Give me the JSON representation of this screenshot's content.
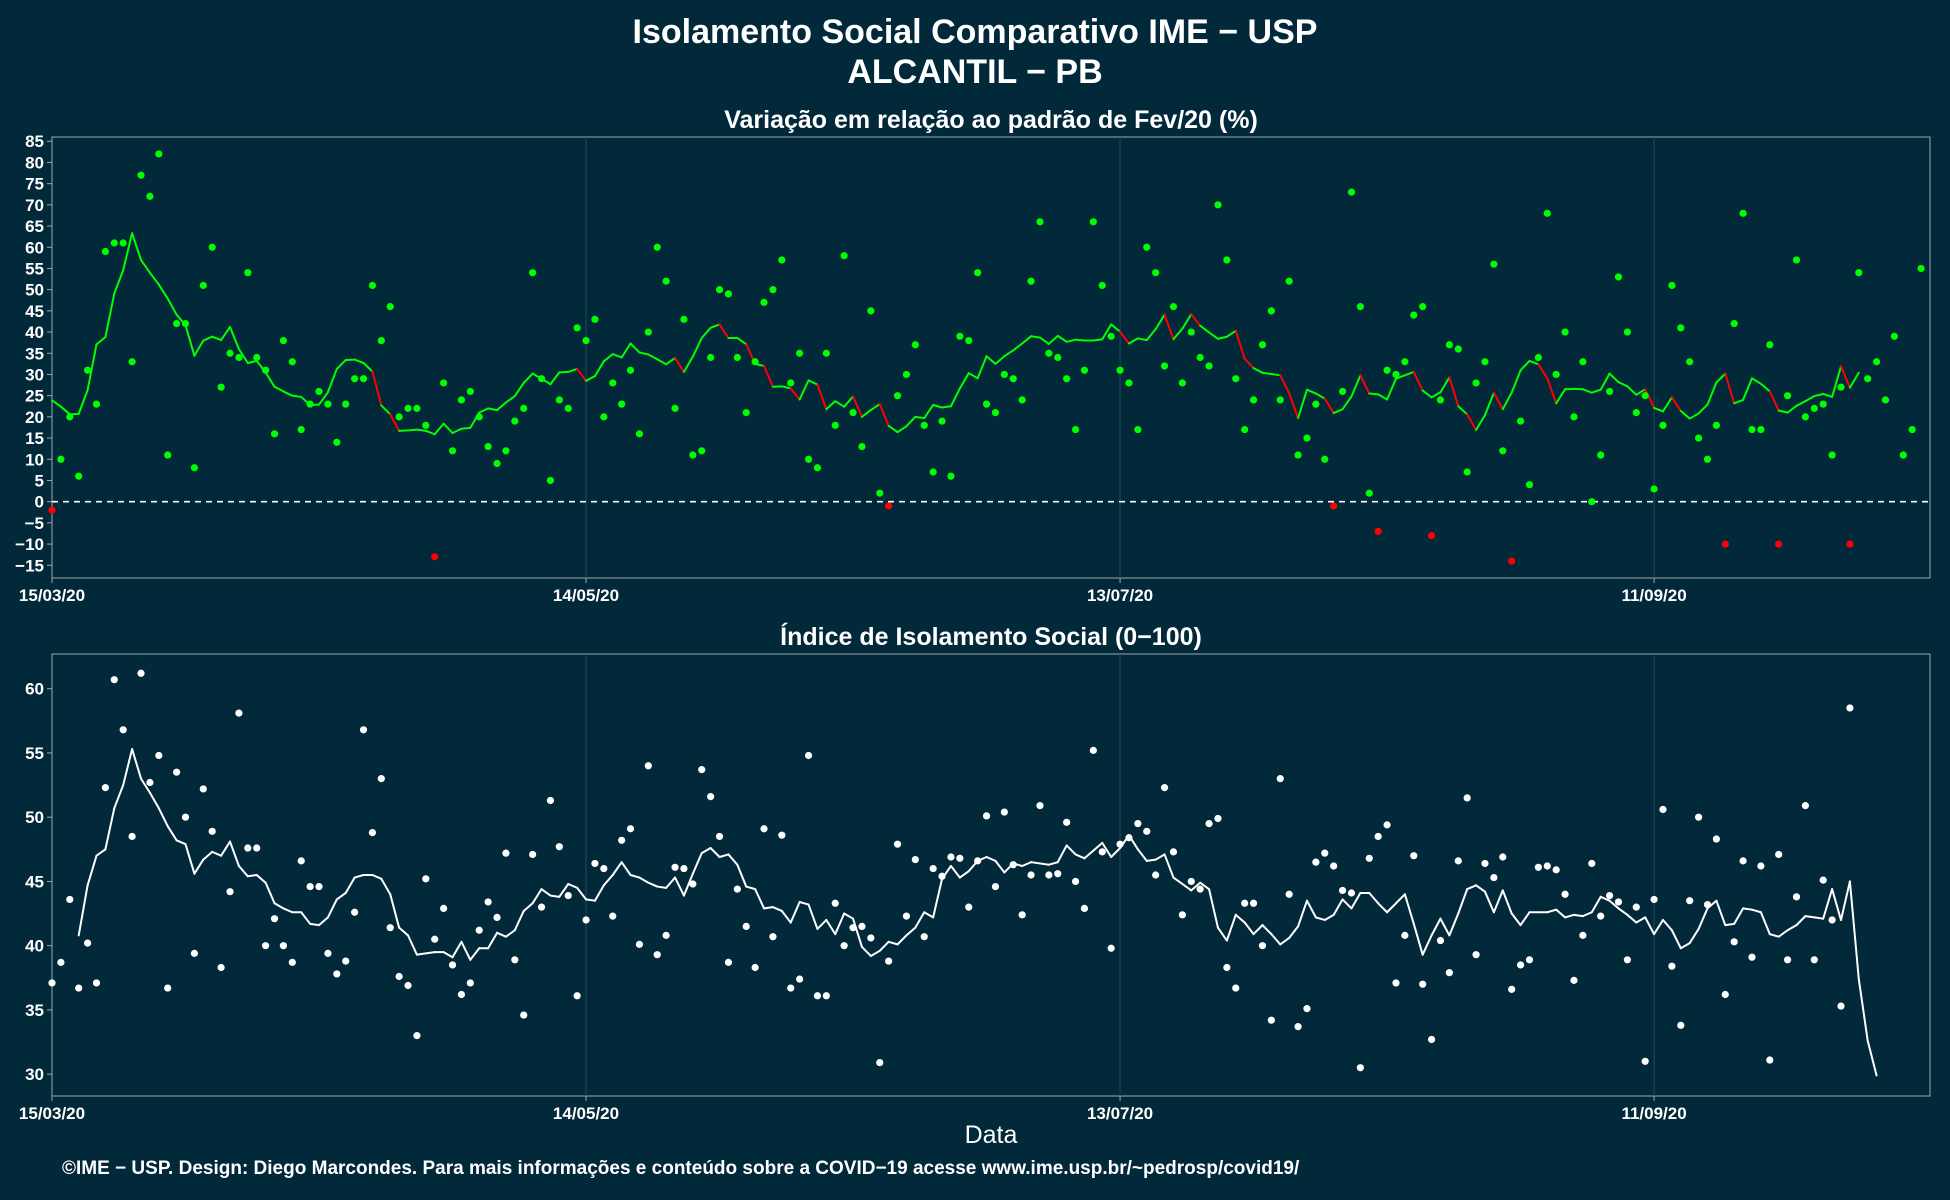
{
  "header": {
    "title": "Isolamento Social Comparativo IME − USP",
    "subtitle": "ALCANTIL − PB"
  },
  "footer": {
    "credit": "©IME − USP. Design: Diego Marcondes. Para mais informações e conteúdo sobre a COVID−19 acesse www.ime.usp.br/~pedrosp/covid19/"
  },
  "colors": {
    "background": "#02293a",
    "positive": "#00ff00",
    "negative": "#ff0000",
    "index": "#ffffff",
    "grid": "#1f4a56",
    "axis": "#9aa8ad"
  },
  "chart_data": [
    {
      "type": "scatter",
      "title": "Variação em relação ao padrão de Fev/20 (%)",
      "xlabel": "",
      "ylabel": "",
      "x_start": "15/03/20",
      "x_end": "02/10/20",
      "xlim_days": [
        0,
        211
      ],
      "ylim": [
        -18,
        86
      ],
      "yticks": [
        -15,
        -10,
        -5,
        0,
        5,
        10,
        15,
        20,
        25,
        30,
        35,
        40,
        45,
        50,
        55,
        60,
        65,
        70,
        75,
        80,
        85
      ],
      "xticks": [
        {
          "day": 0,
          "label": "15/03/20"
        },
        {
          "day": 60,
          "label": "14/05/20"
        },
        {
          "day": 120,
          "label": "13/07/20"
        },
        {
          "day": 180,
          "label": "11/09/20"
        }
      ],
      "reference_line": 0,
      "grid": true,
      "series": [
        {
          "kind": "points",
          "values": [
            -2,
            10,
            20,
            6,
            31,
            23,
            59,
            61,
            61,
            33,
            77,
            72,
            82,
            11,
            42,
            42,
            8,
            51,
            60,
            27,
            35,
            34,
            54,
            34,
            31,
            16,
            38,
            33,
            17,
            23,
            26,
            23,
            14,
            23,
            29,
            29,
            51,
            38,
            46,
            20,
            22,
            22,
            18,
            -13,
            28,
            12,
            24,
            26,
            20,
            13,
            9,
            12,
            19,
            22,
            54,
            29,
            5,
            24,
            22,
            41,
            38,
            43,
            20,
            28,
            23,
            31,
            16,
            40,
            60,
            52,
            22,
            43,
            11,
            12,
            34,
            50,
            49,
            34,
            21,
            33,
            47,
            50,
            57,
            28,
            35,
            10,
            8,
            35,
            18,
            58,
            21,
            13,
            45,
            2,
            -1,
            25,
            30,
            37,
            18,
            7,
            19,
            6,
            39,
            38,
            54,
            23,
            21,
            30,
            29,
            24,
            52,
            66,
            35,
            34,
            29,
            17,
            31,
            66,
            51,
            39,
            31,
            28,
            17,
            60,
            54,
            32,
            46,
            28,
            40,
            34,
            32,
            70,
            57,
            29,
            17,
            24,
            37,
            45,
            24,
            52,
            11,
            15,
            23,
            10,
            -1,
            26,
            73,
            46,
            2,
            -7,
            31,
            30,
            33,
            44,
            46,
            -8,
            24,
            37,
            36,
            7,
            28,
            33,
            56,
            12,
            -14,
            19,
            4,
            34,
            68,
            30,
            40,
            20,
            33,
            0,
            11,
            26,
            53,
            40,
            21,
            25,
            3,
            18,
            51,
            41,
            33,
            15,
            10,
            18,
            -10,
            42,
            68,
            17,
            17,
            37,
            -10,
            25,
            57,
            20,
            22,
            23,
            11,
            27,
            -10,
            54,
            29,
            33,
            24,
            39,
            11,
            17,
            55
          ]
        },
        {
          "kind": "moving_average",
          "start_day": 0,
          "values": [
            23.9,
            22.4,
            20.6,
            20.7,
            26.3,
            37.1,
            38.8,
            49.1,
            54.6,
            63.3,
            57.0,
            54.0,
            51.2,
            47.9,
            44.1,
            41.6,
            34.4,
            38.0,
            38.9,
            38.1,
            41.2,
            36.0,
            32.7,
            33.2,
            30.5,
            27.1,
            26.0,
            25.0,
            24.7,
            22.8,
            22.9,
            25.8,
            31.3,
            33.4,
            33.5,
            32.7,
            30.7,
            22.7,
            20.6,
            16.7,
            16.8,
            17.0,
            16.7,
            15.9,
            18.4,
            16.2,
            17.2,
            17.4,
            21.0,
            22.0,
            21.6,
            23.4,
            24.9,
            28.0,
            30.2,
            29.0,
            27.7,
            30.5,
            30.6,
            31.3,
            28.5,
            29.6,
            33.1,
            34.8,
            34.0,
            37.3,
            35.2,
            34.7,
            33.6,
            32.4,
            33.9,
            30.6,
            34.2,
            38.6,
            41.0,
            41.8,
            38.6,
            38.6,
            37.1,
            32.5,
            32.0,
            27.1,
            27.2,
            26.7,
            24.1,
            28.6,
            27.6,
            21.8,
            23.7,
            22.4,
            24.8,
            20.0,
            21.6,
            23.0,
            17.9,
            16.4,
            17.8,
            20.0,
            19.7,
            22.8,
            22.2,
            22.5,
            26.7,
            30.3,
            29.1,
            34.3,
            32.5,
            34.3,
            35.7,
            37.3,
            39.0,
            38.7,
            37.2,
            39.1,
            37.7,
            38.2,
            38.0,
            38.0,
            38.3,
            41.8,
            40.1,
            37.3,
            38.5,
            38.1,
            40.7,
            44.1,
            38.3,
            40.8,
            44.2,
            41.5,
            39.9,
            38.4,
            38.9,
            40.3,
            33.7,
            31.5,
            30.4,
            30.1,
            29.8,
            25.6,
            19.7,
            26.4,
            25.5,
            24.3,
            20.9,
            21.8,
            24.8,
            29.8,
            25.5,
            25.3,
            24.1,
            29.0,
            29.8,
            30.6,
            26.2,
            24.6,
            25.8,
            29.3,
            22.5,
            20.6,
            16.9,
            20.4,
            25.7,
            21.8,
            25.7,
            31.0,
            33.2,
            32.4,
            29.1,
            23.2,
            26.5,
            26.6,
            26.5,
            25.7,
            26.4,
            30.2,
            28.2,
            27.2,
            25.2,
            26.5,
            22.1,
            21.3,
            24.6,
            21.4,
            19.6,
            20.8,
            22.9,
            28.1,
            30.2,
            23.2,
            24.0,
            29.1,
            27.8,
            26.0,
            21.5,
            21.0,
            22.6,
            23.7,
            24.9,
            25.4,
            24.7,
            31.9,
            26.9,
            30.4
          ]
        }
      ]
    },
    {
      "type": "scatter",
      "title": "Índice de Isolamento Social (0−100)",
      "xlabel": "Data",
      "ylabel": "",
      "x_start": "15/03/20",
      "x_end": "02/10/20",
      "xlim_days": [
        0,
        211
      ],
      "ylim": [
        28.3,
        62.7
      ],
      "yticks": [
        30,
        35,
        40,
        45,
        50,
        55,
        60
      ],
      "xticks": [
        {
          "day": 0,
          "label": "15/03/20"
        },
        {
          "day": 60,
          "label": "14/05/20"
        },
        {
          "day": 120,
          "label": "13/07/20"
        },
        {
          "day": 180,
          "label": "11/09/20"
        }
      ],
      "grid": true,
      "series": [
        {
          "kind": "points",
          "values": [
            37.1,
            38.7,
            43.6,
            36.7,
            40.2,
            37.1,
            52.3,
            60.7,
            56.8,
            48.5,
            61.2,
            52.7,
            54.8,
            36.7,
            53.5,
            50.0,
            39.4,
            52.2,
            48.9,
            38.3,
            44.2,
            58.1,
            47.6,
            47.6,
            40.0,
            42.1,
            40.0,
            38.7,
            46.6,
            44.6,
            44.6,
            39.4,
            37.8,
            38.8,
            42.6,
            56.8,
            48.8,
            53.0,
            41.4,
            37.6,
            36.9,
            33.0,
            45.2,
            40.5,
            42.9,
            38.5,
            36.2,
            37.1,
            41.2,
            43.4,
            42.2,
            47.2,
            38.9,
            34.6,
            47.1,
            43.0,
            51.3,
            47.7,
            43.9,
            36.1,
            42.0,
            46.4,
            46.0,
            42.3,
            48.2,
            49.1,
            40.1,
            54.0,
            39.3,
            40.8,
            46.1,
            46.0,
            44.8,
            53.7,
            51.6,
            48.5,
            38.7,
            44.4,
            41.5,
            38.3,
            49.1,
            40.7,
            48.6,
            36.7,
            37.4,
            54.8,
            36.1,
            36.1,
            43.3,
            40.0,
            41.4,
            41.5,
            40.6,
            30.9,
            38.8,
            47.9,
            42.3,
            46.7,
            40.7,
            46.0,
            45.4,
            46.9,
            46.8,
            43.0,
            46.6,
            50.1,
            44.6,
            50.4,
            46.3,
            42.4,
            45.5,
            50.9,
            45.5,
            45.6,
            49.6,
            45.0,
            42.9,
            55.2,
            47.3,
            39.8,
            47.9,
            48.4,
            49.5,
            48.9,
            45.5,
            52.3,
            47.3,
            42.4,
            45.0,
            44.4,
            49.5,
            49.9,
            38.3,
            36.7,
            43.3,
            43.3,
            40.0,
            34.2,
            53.0,
            44.0,
            33.7,
            35.1,
            46.5,
            47.2,
            46.2,
            44.3,
            44.1,
            30.5,
            46.8,
            48.5,
            49.4,
            37.1,
            40.8,
            47.0,
            37.0,
            32.7,
            40.4,
            37.9,
            46.6,
            51.5,
            39.3,
            46.4,
            45.3,
            46.9,
            36.6,
            38.5,
            38.9,
            46.1,
            46.2,
            45.9,
            44.0,
            37.3,
            40.8,
            46.4,
            42.3,
            43.9,
            43.4,
            38.9,
            43.0,
            31.0,
            43.6,
            50.6,
            38.4,
            33.8,
            43.5,
            50.0,
            43.2,
            48.3,
            36.2,
            40.3,
            46.6,
            39.1,
            46.2,
            31.1,
            47.1,
            38.9,
            43.8,
            50.9,
            38.9,
            45.1,
            42.0,
            35.3,
            58.5
          ]
        },
        {
          "kind": "moving_average",
          "start_day": 3,
          "values": [
            40.8,
            44.7,
            47.0,
            47.5,
            50.7,
            52.5,
            55.3,
            53.0,
            51.9,
            50.7,
            49.3,
            48.2,
            47.9,
            45.6,
            46.7,
            47.3,
            47.0,
            48.1,
            46.2,
            45.4,
            45.5,
            44.9,
            43.3,
            42.9,
            42.6,
            42.6,
            41.7,
            41.6,
            42.2,
            43.6,
            44.1,
            45.3,
            45.5,
            45.5,
            45.2,
            44.0,
            41.4,
            40.8,
            39.3,
            39.4,
            39.5,
            39.5,
            39.1,
            40.3,
            38.9,
            39.8,
            39.8,
            41.0,
            40.7,
            41.2,
            42.7,
            43.3,
            44.4,
            43.9,
            43.8,
            44.8,
            44.5,
            43.6,
            43.5,
            44.7,
            45.5,
            46.5,
            45.5,
            45.3,
            44.9,
            44.6,
            44.5,
            45.3,
            43.9,
            45.6,
            47.2,
            47.6,
            46.9,
            47.1,
            46.3,
            44.6,
            44.4,
            42.9,
            43.0,
            42.7,
            41.8,
            43.4,
            43.2,
            41.3,
            42.0,
            40.9,
            42.5,
            42.1,
            39.9,
            39.2,
            39.6,
            40.3,
            40.1,
            40.8,
            41.4,
            42.6,
            42.2,
            45.2,
            46.2,
            45.3,
            45.8,
            46.6,
            46.9,
            46.6,
            45.7,
            46.4,
            46.2,
            46.5,
            46.4,
            46.3,
            46.5,
            47.8,
            47.1,
            46.8,
            47.4,
            48.0,
            46.9,
            47.6,
            48.6,
            47.5,
            46.6,
            46.7,
            47.1,
            45.3,
            44.8,
            44.3,
            44.9,
            44.4,
            41.4,
            40.4,
            42.4,
            41.8,
            40.9,
            41.6,
            40.9,
            40.1,
            40.6,
            41.5,
            43.5,
            42.2,
            42.0,
            42.4,
            43.6,
            42.9,
            44.1,
            44.1,
            43.3,
            42.6,
            43.3,
            44.0,
            41.7,
            39.3,
            40.8,
            42.1,
            40.8,
            42.5,
            44.4,
            44.7,
            44.2,
            42.6,
            44.3,
            42.5,
            41.6,
            42.6,
            42.6,
            42.6,
            42.8,
            42.2,
            42.4,
            42.3,
            42.6,
            43.8,
            43.5,
            42.9,
            42.4,
            41.8,
            42.2,
            40.9,
            42.0,
            41.2,
            39.8,
            40.2,
            41.3,
            42.9,
            43.5,
            41.6,
            41.7,
            42.9,
            42.8,
            42.6,
            40.9,
            40.7,
            41.2,
            41.6,
            42.3,
            42.2,
            42.1,
            44.4,
            42.0,
            45.0,
            37.4,
            32.6,
            29.9
          ]
        }
      ]
    }
  ]
}
